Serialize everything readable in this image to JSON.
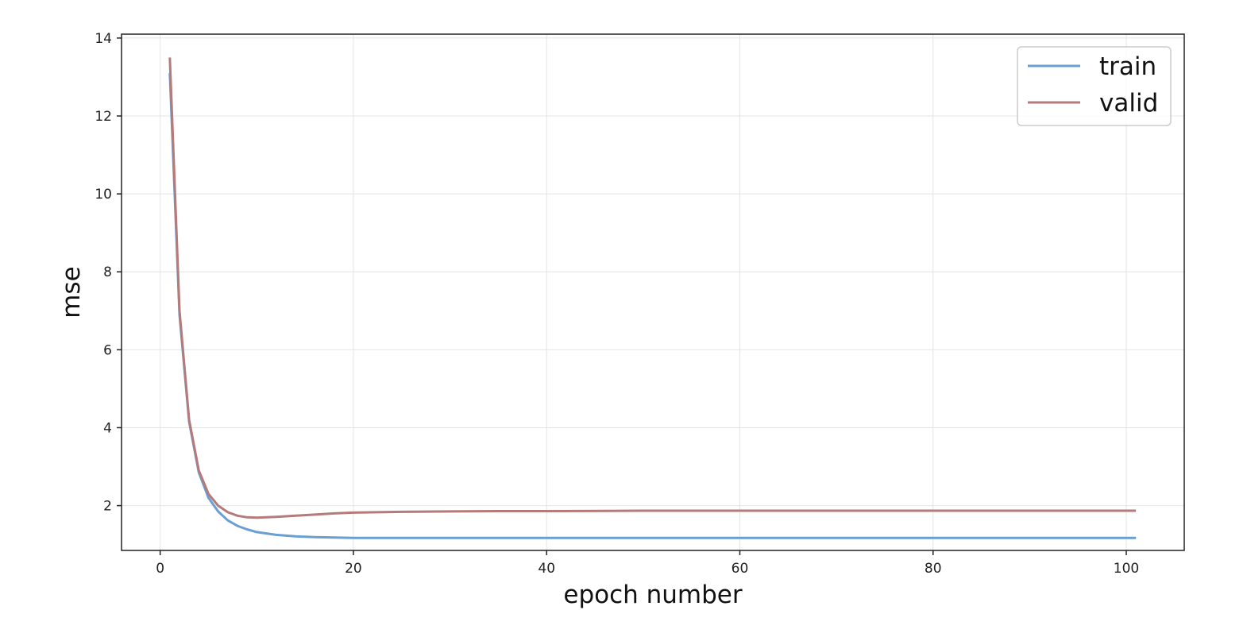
{
  "chart_data": {
    "type": "line",
    "title": "",
    "xlabel": "epoch number",
    "ylabel": "mse",
    "xlim": [
      -4,
      106
    ],
    "ylim": [
      0.85,
      14.1
    ],
    "xticks": [
      0,
      20,
      40,
      60,
      80,
      100
    ],
    "yticks": [
      2,
      4,
      6,
      8,
      10,
      12,
      14
    ],
    "grid": true,
    "legend": "top-right",
    "x": [
      1,
      2,
      3,
      4,
      5,
      6,
      7,
      8,
      9,
      10,
      12,
      14,
      16,
      18,
      20,
      25,
      30,
      35,
      40,
      50,
      60,
      70,
      80,
      90,
      101
    ],
    "series": [
      {
        "name": "train",
        "color": "#6a9fd4",
        "values": [
          13.1,
          6.9,
          4.15,
          2.85,
          2.2,
          1.85,
          1.62,
          1.48,
          1.39,
          1.32,
          1.25,
          1.21,
          1.19,
          1.18,
          1.17,
          1.17,
          1.17,
          1.17,
          1.17,
          1.17,
          1.17,
          1.17,
          1.17,
          1.17,
          1.17
        ]
      },
      {
        "name": "valid",
        "color": "#b57a7a",
        "values": [
          13.5,
          7.0,
          4.2,
          2.9,
          2.3,
          2.0,
          1.83,
          1.74,
          1.7,
          1.69,
          1.71,
          1.74,
          1.77,
          1.8,
          1.82,
          1.84,
          1.85,
          1.86,
          1.86,
          1.87,
          1.87,
          1.87,
          1.87,
          1.87,
          1.87
        ]
      }
    ]
  }
}
